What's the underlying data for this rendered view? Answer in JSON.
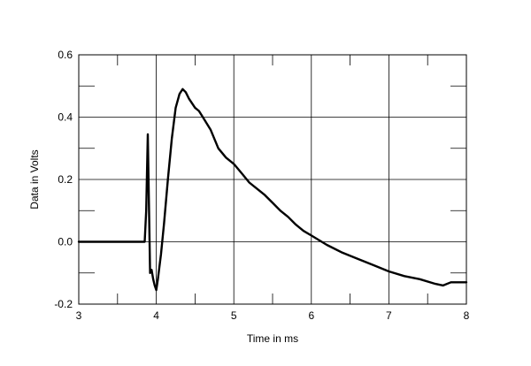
{
  "chart_data": {
    "type": "line",
    "title": "",
    "xlabel": "Time in ms",
    "ylabel": "Data in Volts",
    "xlim": [
      3,
      8
    ],
    "ylim": [
      -0.2,
      0.6
    ],
    "x_ticks": [
      3,
      4,
      5,
      6,
      7,
      8
    ],
    "x_tick_labels": [
      "3",
      "4",
      "5",
      "6",
      "7",
      "8"
    ],
    "y_ticks": [
      -0.2,
      0.0,
      0.2,
      0.4,
      0.6
    ],
    "y_tick_labels": [
      "-0.2",
      "0.0",
      "0.2",
      "0.4",
      "0.6"
    ],
    "grid": true,
    "series": [
      {
        "line_color": "#000000",
        "x": [
          3.0,
          3.5,
          3.85,
          3.87,
          3.89,
          3.905,
          3.92,
          3.94,
          3.96,
          3.98,
          4.0,
          4.02,
          4.06,
          4.1,
          4.15,
          4.2,
          4.25,
          4.3,
          4.34,
          4.38,
          4.42,
          4.5,
          4.55,
          4.6,
          4.7,
          4.8,
          4.9,
          5.0,
          5.1,
          5.2,
          5.3,
          5.4,
          5.5,
          5.6,
          5.7,
          5.8,
          5.9,
          6.0,
          6.2,
          6.4,
          6.6,
          6.8,
          7.0,
          7.2,
          7.4,
          7.6,
          7.7,
          7.8,
          8.0
        ],
        "y": [
          0.0,
          0.0,
          0.0,
          0.1,
          0.345,
          0.12,
          -0.1,
          -0.09,
          -0.12,
          -0.14,
          -0.155,
          -0.12,
          -0.04,
          0.06,
          0.2,
          0.33,
          0.43,
          0.475,
          0.49,
          0.48,
          0.46,
          0.43,
          0.42,
          0.4,
          0.36,
          0.3,
          0.27,
          0.25,
          0.22,
          0.19,
          0.17,
          0.15,
          0.125,
          0.1,
          0.08,
          0.055,
          0.035,
          0.02,
          -0.01,
          -0.035,
          -0.055,
          -0.075,
          -0.095,
          -0.11,
          -0.12,
          -0.135,
          -0.14,
          -0.13,
          -0.13
        ]
      }
    ]
  }
}
